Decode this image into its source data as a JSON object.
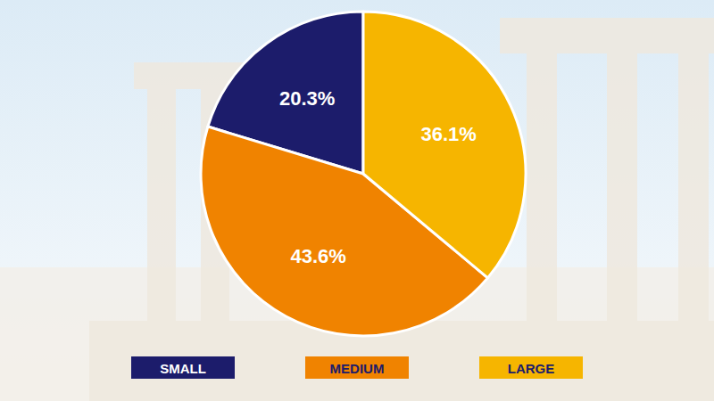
{
  "chart_data": {
    "type": "pie",
    "categories": [
      "SMALL",
      "MEDIUM",
      "LARGE"
    ],
    "values": [
      20.3,
      43.6,
      36.1
    ],
    "value_labels": [
      "20.3%",
      "43.6%",
      "36.1%"
    ],
    "colors": [
      "#1c1c6b",
      "#f08300",
      "#f6b500"
    ],
    "data_labels": true,
    "legend": "bottom"
  }
}
